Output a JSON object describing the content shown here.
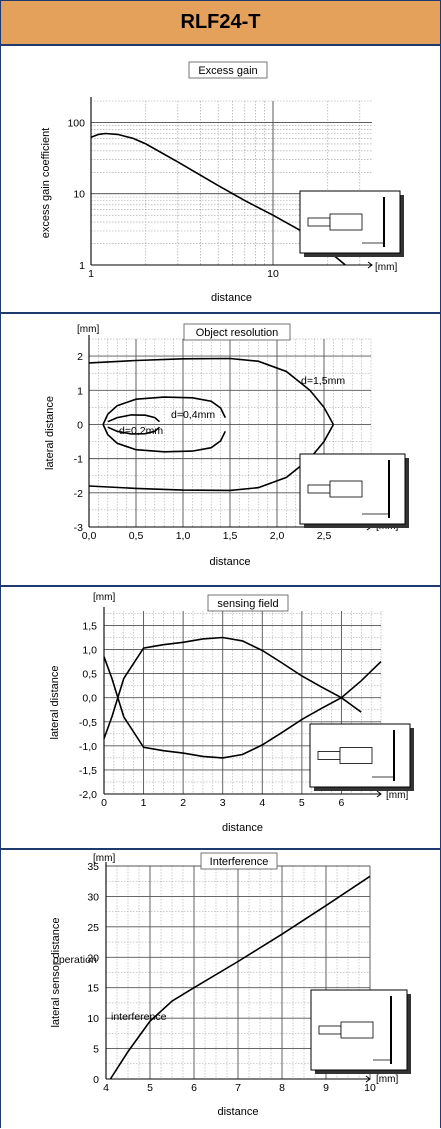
{
  "header": {
    "title": "RLF24-T"
  },
  "colors": {
    "header_bg": "#e3a15c",
    "border": "#1f3a6e",
    "curve": "#000000",
    "grid": "#9a9a9a"
  },
  "chart_data": [
    {
      "type": "line",
      "title": "Excess gain",
      "xlabel": "distance",
      "ylabel": "excess gain coefficient",
      "unit": "[mm]",
      "xscale": "log",
      "yscale": "log",
      "xlim": [
        1,
        35
      ],
      "ylim": [
        1,
        200
      ],
      "x_ticks": [
        "1",
        "10"
      ],
      "y_ticks": [
        "1",
        "10",
        "100"
      ],
      "grid": true,
      "series": [
        {
          "x": [
            1,
            1.1,
            1.2,
            1.4,
            1.7,
            2,
            3,
            5,
            7,
            10,
            15,
            20,
            25
          ],
          "y": [
            62,
            68,
            70,
            68,
            60,
            50,
            28,
            13,
            8,
            5,
            2.8,
            1.6,
            1
          ]
        }
      ]
    },
    {
      "type": "line",
      "title": "Object resolution",
      "xlabel": "distance",
      "ylabel": "lateral distance",
      "unit_y": "[mm]",
      "unit_x": "[mm]",
      "xlim": [
        0,
        3
      ],
      "ylim": [
        -3,
        2.5
      ],
      "x_ticks": [
        "0,0",
        "0,5",
        "1,0",
        "1,5",
        "2,0",
        "2,5"
      ],
      "y_ticks": [
        "-3",
        "-2",
        "-1",
        "0",
        "1",
        "2"
      ],
      "grid": true,
      "annotations": [
        "d=1,5mm",
        "d=0,4mm",
        "d=0,2mm"
      ],
      "series": [
        {
          "x": [
            0,
            0.5,
            1,
            1.5,
            1.8,
            2.1,
            2.35,
            2.5,
            2.6
          ],
          "y": [
            1.8,
            1.87,
            1.92,
            1.93,
            1.85,
            1.55,
            1,
            0.5,
            0
          ]
        },
        {
          "x": [
            0,
            0.5,
            1,
            1.5,
            1.8,
            2.1,
            2.35,
            2.5,
            2.6
          ],
          "y": [
            -1.8,
            -1.87,
            -1.92,
            -1.93,
            -1.85,
            -1.55,
            -1,
            -0.5,
            0
          ]
        },
        {
          "x": [
            0.15,
            0.2,
            0.3,
            0.5,
            0.8,
            1.1,
            1.3,
            1.4,
            1.45
          ],
          "y": [
            0,
            0.3,
            0.55,
            0.74,
            0.8,
            0.78,
            0.68,
            0.48,
            0.2
          ]
        },
        {
          "x": [
            0.15,
            0.2,
            0.3,
            0.5,
            0.8,
            1.1,
            1.3,
            1.4,
            1.45
          ],
          "y": [
            0,
            -0.3,
            -0.55,
            -0.74,
            -0.8,
            -0.78,
            -0.68,
            -0.48,
            -0.2
          ]
        },
        {
          "x": [
            0.2,
            0.3,
            0.45,
            0.6,
            0.7,
            0.75
          ],
          "y": [
            0.08,
            0.2,
            0.28,
            0.27,
            0.2,
            0.08
          ]
        },
        {
          "x": [
            0.2,
            0.3,
            0.45,
            0.6,
            0.7,
            0.75
          ],
          "y": [
            -0.08,
            -0.2,
            -0.28,
            -0.27,
            -0.2,
            -0.08
          ]
        }
      ]
    },
    {
      "type": "line",
      "title": "sensing field",
      "xlabel": "distance",
      "ylabel": "lateral distance",
      "unit_y": "[mm]",
      "unit_x": "[mm]",
      "xlim": [
        0,
        7
      ],
      "ylim": [
        -2,
        1.8
      ],
      "x_ticks": [
        "0",
        "1",
        "2",
        "3",
        "4",
        "5",
        "6"
      ],
      "y_ticks": [
        "1,5",
        "1,0",
        "0,5",
        "0,0",
        "-0,5",
        "-1,0",
        "-1,5",
        "-2,0"
      ],
      "grid": true,
      "series": [
        {
          "x": [
            0,
            0.2,
            0.5,
            1,
            1.5,
            2,
            2.5,
            3,
            3.5,
            4,
            4.5,
            5,
            5.5,
            6,
            6.5
          ],
          "y": [
            -0.85,
            -0.4,
            0.4,
            1.03,
            1.1,
            1.15,
            1.22,
            1.25,
            1.18,
            0.98,
            0.72,
            0.45,
            0.22,
            0,
            -0.3
          ]
        },
        {
          "x": [
            0,
            0.2,
            0.5,
            1,
            1.5,
            2,
            2.5,
            3,
            3.5,
            4,
            4.5,
            5,
            5.5,
            6,
            6.5,
            7
          ],
          "y": [
            0.85,
            0.4,
            -0.4,
            -1.03,
            -1.1,
            -1.15,
            -1.22,
            -1.25,
            -1.18,
            -0.98,
            -0.72,
            -0.45,
            -0.22,
            0,
            0.35,
            0.75
          ]
        }
      ]
    },
    {
      "type": "line",
      "title": "Interference",
      "xlabel": "distance",
      "ylabel": "lateral sensor distance",
      "unit_y": "[mm]",
      "unit_x": "[mm]",
      "xlim": [
        4,
        10
      ],
      "ylim": [
        0,
        35
      ],
      "x_ticks": [
        "4",
        "5",
        "6",
        "7",
        "8",
        "9",
        "10"
      ],
      "y_ticks": [
        "0",
        "5",
        "10",
        "15",
        "20",
        "25",
        "30",
        "35"
      ],
      "grid": true,
      "annotations": [
        "operation",
        "interference"
      ],
      "series": [
        {
          "x": [
            4.1,
            4.5,
            5,
            5.5,
            6,
            7,
            8,
            9,
            10
          ],
          "y": [
            0,
            4.5,
            9.5,
            12.8,
            15,
            19.3,
            23.8,
            28.5,
            33.3
          ]
        }
      ]
    }
  ]
}
